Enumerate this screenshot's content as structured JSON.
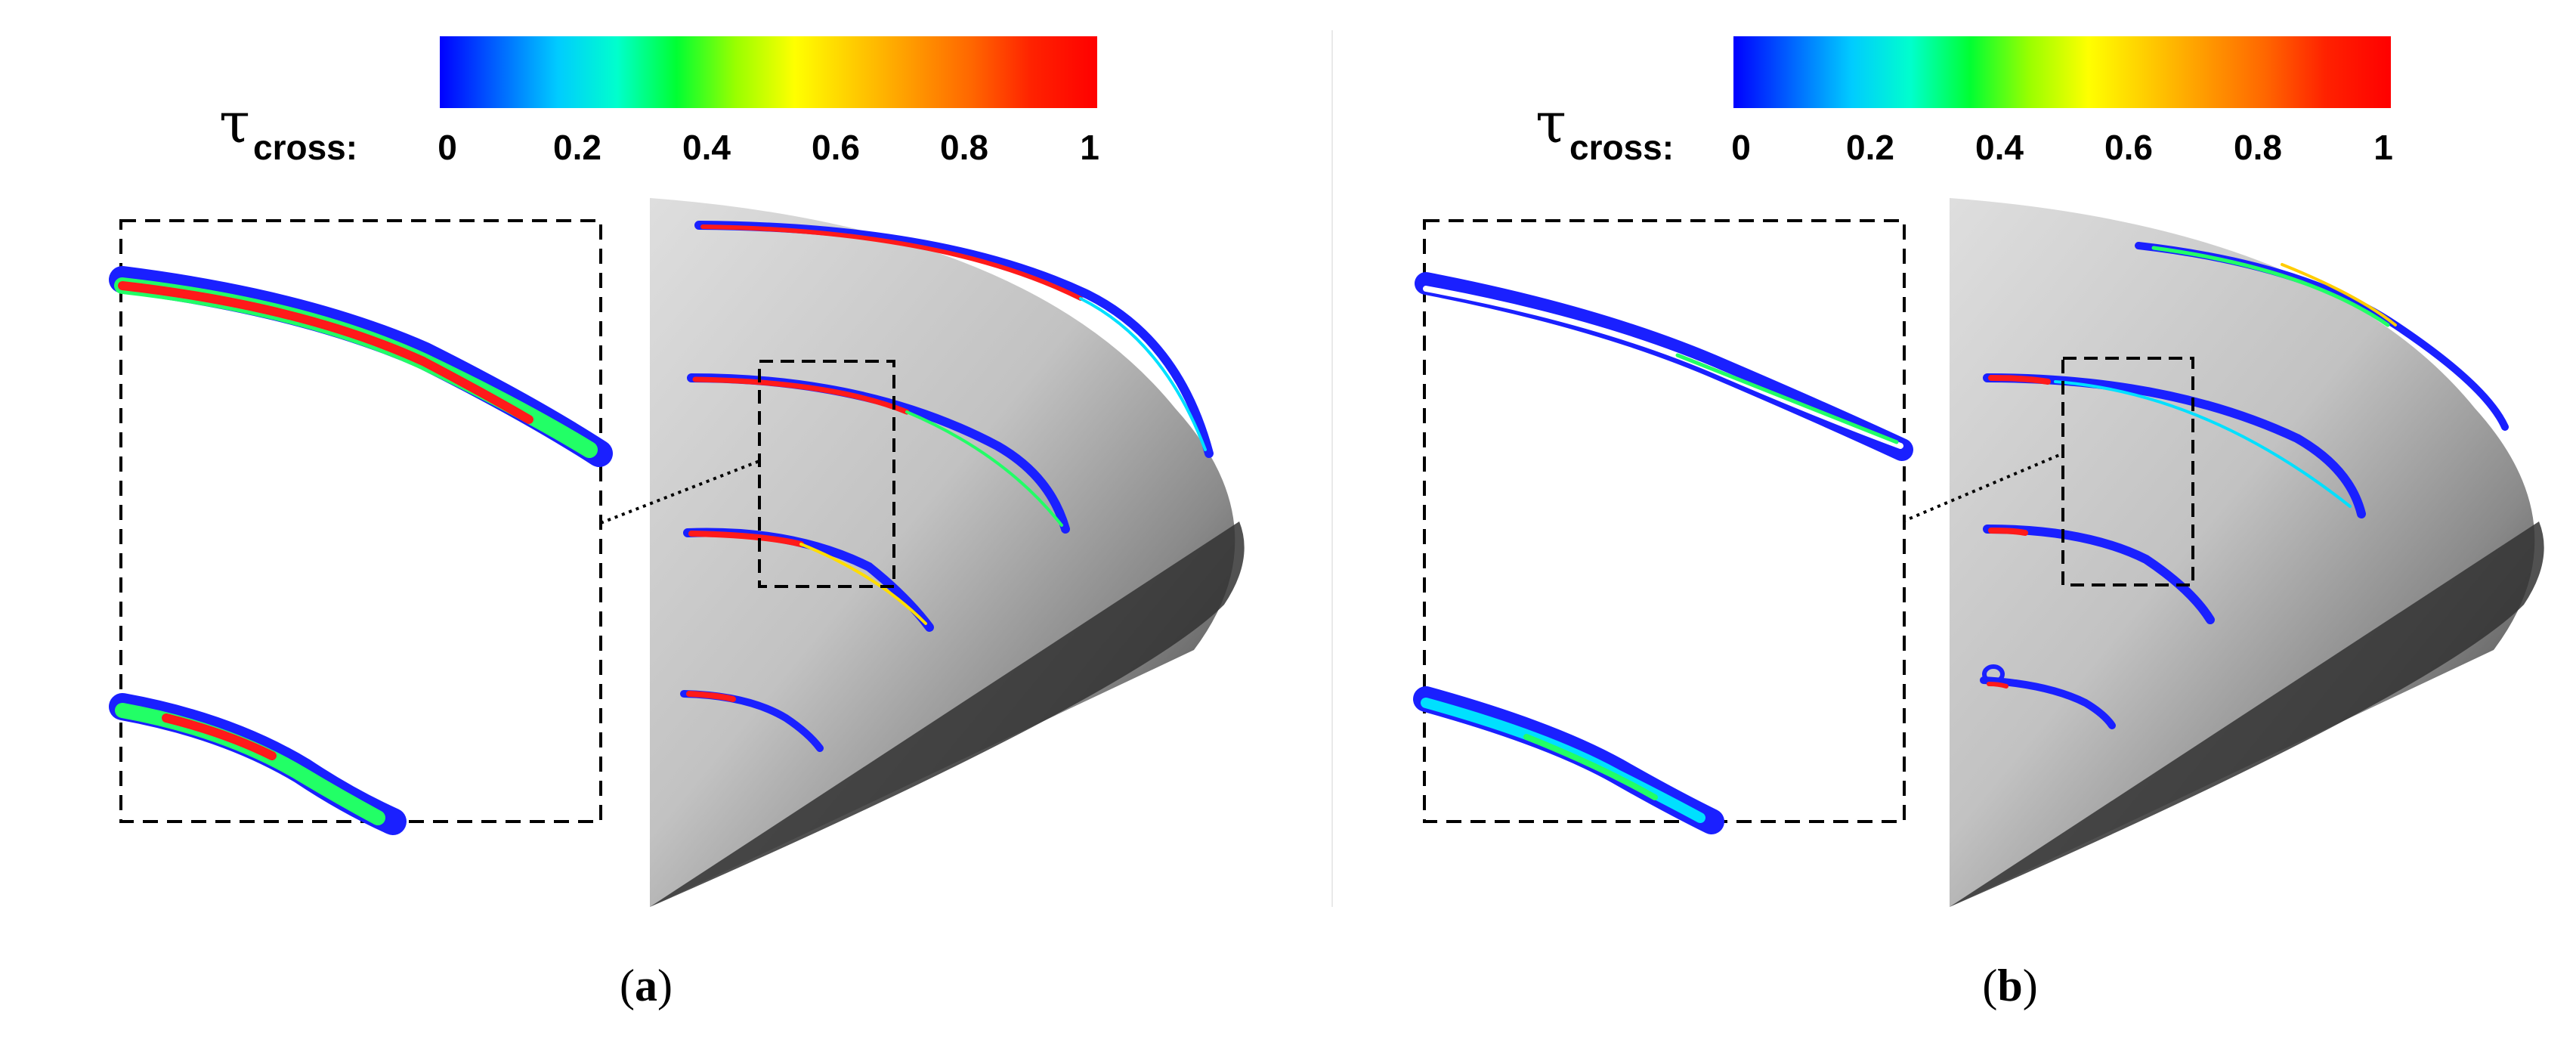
{
  "colorbar": {
    "symbol": "τ",
    "subscript": "cross:",
    "ticks": [
      "0",
      "0.2",
      "0.4",
      "0.6",
      "0.8",
      "1"
    ],
    "range": [
      0,
      1
    ],
    "colors": [
      "#0000ff",
      "#0066ff",
      "#00ccff",
      "#00ffcc",
      "#00ff33",
      "#99ff00",
      "#ffff00",
      "#ffcc00",
      "#ff9900",
      "#ff6600",
      "#ff2200",
      "#ff0000"
    ]
  },
  "panels": [
    {
      "caption_open": "(",
      "caption_letter": "a",
      "caption_close": ")"
    },
    {
      "caption_open": "(",
      "caption_letter": "b",
      "caption_close": ")"
    }
  ]
}
